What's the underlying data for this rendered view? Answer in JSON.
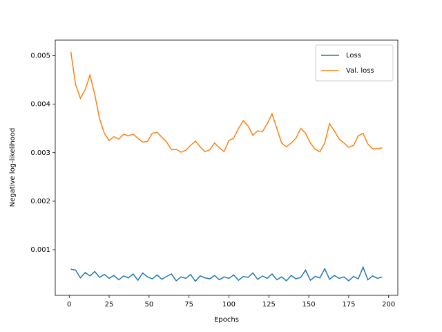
{
  "chart_data": {
    "type": "line",
    "x_label": "Epochs",
    "y_label": "Negative log-likelihood",
    "x": [
      1,
      4,
      7,
      10,
      13,
      16,
      19,
      22,
      25,
      28,
      31,
      34,
      37,
      40,
      43,
      46,
      49,
      52,
      55,
      58,
      61,
      64,
      67,
      70,
      73,
      76,
      79,
      82,
      85,
      88,
      91,
      94,
      97,
      100,
      103,
      106,
      109,
      112,
      115,
      118,
      121,
      124,
      127,
      130,
      133,
      136,
      139,
      142,
      145,
      148,
      151,
      154,
      157,
      160,
      163,
      166,
      169,
      172,
      175,
      178,
      181,
      184,
      187,
      190,
      193,
      196
    ],
    "series": [
      {
        "name": "Loss",
        "color": "#1f77b4",
        "values": [
          0.0006,
          0.00058,
          0.00042,
          0.00053,
          0.00046,
          0.00055,
          0.00043,
          0.00049,
          0.00041,
          0.00047,
          0.00038,
          0.00046,
          0.00042,
          0.0005,
          0.00037,
          0.00052,
          0.00044,
          0.0004,
          0.00048,
          0.00039,
          0.00045,
          0.0005,
          0.00036,
          0.00044,
          0.00041,
          0.00049,
          0.00035,
          0.00046,
          0.00042,
          0.0004,
          0.00047,
          0.00038,
          0.00044,
          0.00041,
          0.00048,
          0.00037,
          0.00045,
          0.00043,
          0.00052,
          0.00039,
          0.00046,
          0.00041,
          0.0005,
          0.00038,
          0.00044,
          0.00036,
          0.00047,
          0.0004,
          0.00043,
          0.00058,
          0.00037,
          0.00045,
          0.00042,
          0.00061,
          0.00039,
          0.00047,
          0.00041,
          0.00044,
          0.00036,
          0.00045,
          0.0004,
          0.00064,
          0.00038,
          0.00046,
          0.00041,
          0.00044
        ]
      },
      {
        "name": "Val. loss",
        "color": "#ff7f0e",
        "values": [
          0.00508,
          0.0044,
          0.00412,
          0.0043,
          0.0046,
          0.0042,
          0.0037,
          0.0034,
          0.00325,
          0.00333,
          0.00328,
          0.00338,
          0.00335,
          0.00338,
          0.0033,
          0.00322,
          0.00323,
          0.0034,
          0.00342,
          0.00332,
          0.00322,
          0.00306,
          0.00307,
          0.00301,
          0.00305,
          0.00315,
          0.00324,
          0.00312,
          0.00302,
          0.00306,
          0.0032,
          0.0031,
          0.00302,
          0.00325,
          0.0033,
          0.0035,
          0.00366,
          0.00355,
          0.00336,
          0.00345,
          0.00343,
          0.0036,
          0.0038,
          0.0035,
          0.0032,
          0.00312,
          0.0032,
          0.0033,
          0.0035,
          0.0034,
          0.0032,
          0.00307,
          0.00302,
          0.0032,
          0.0036,
          0.00345,
          0.00328,
          0.0032,
          0.00311,
          0.00315,
          0.00335,
          0.0034,
          0.00318,
          0.00308,
          0.00308,
          0.0031
        ]
      }
    ],
    "xlim": [
      -8.75,
      205.75
    ],
    "xticks": [
      0,
      25,
      50,
      75,
      100,
      125,
      150,
      175,
      200
    ],
    "ylim": [
      6e-05,
      0.00532
    ],
    "yticks": [
      0.001,
      0.002,
      0.003,
      0.004,
      0.005
    ],
    "legend": "upper right",
    "grid": false
  }
}
